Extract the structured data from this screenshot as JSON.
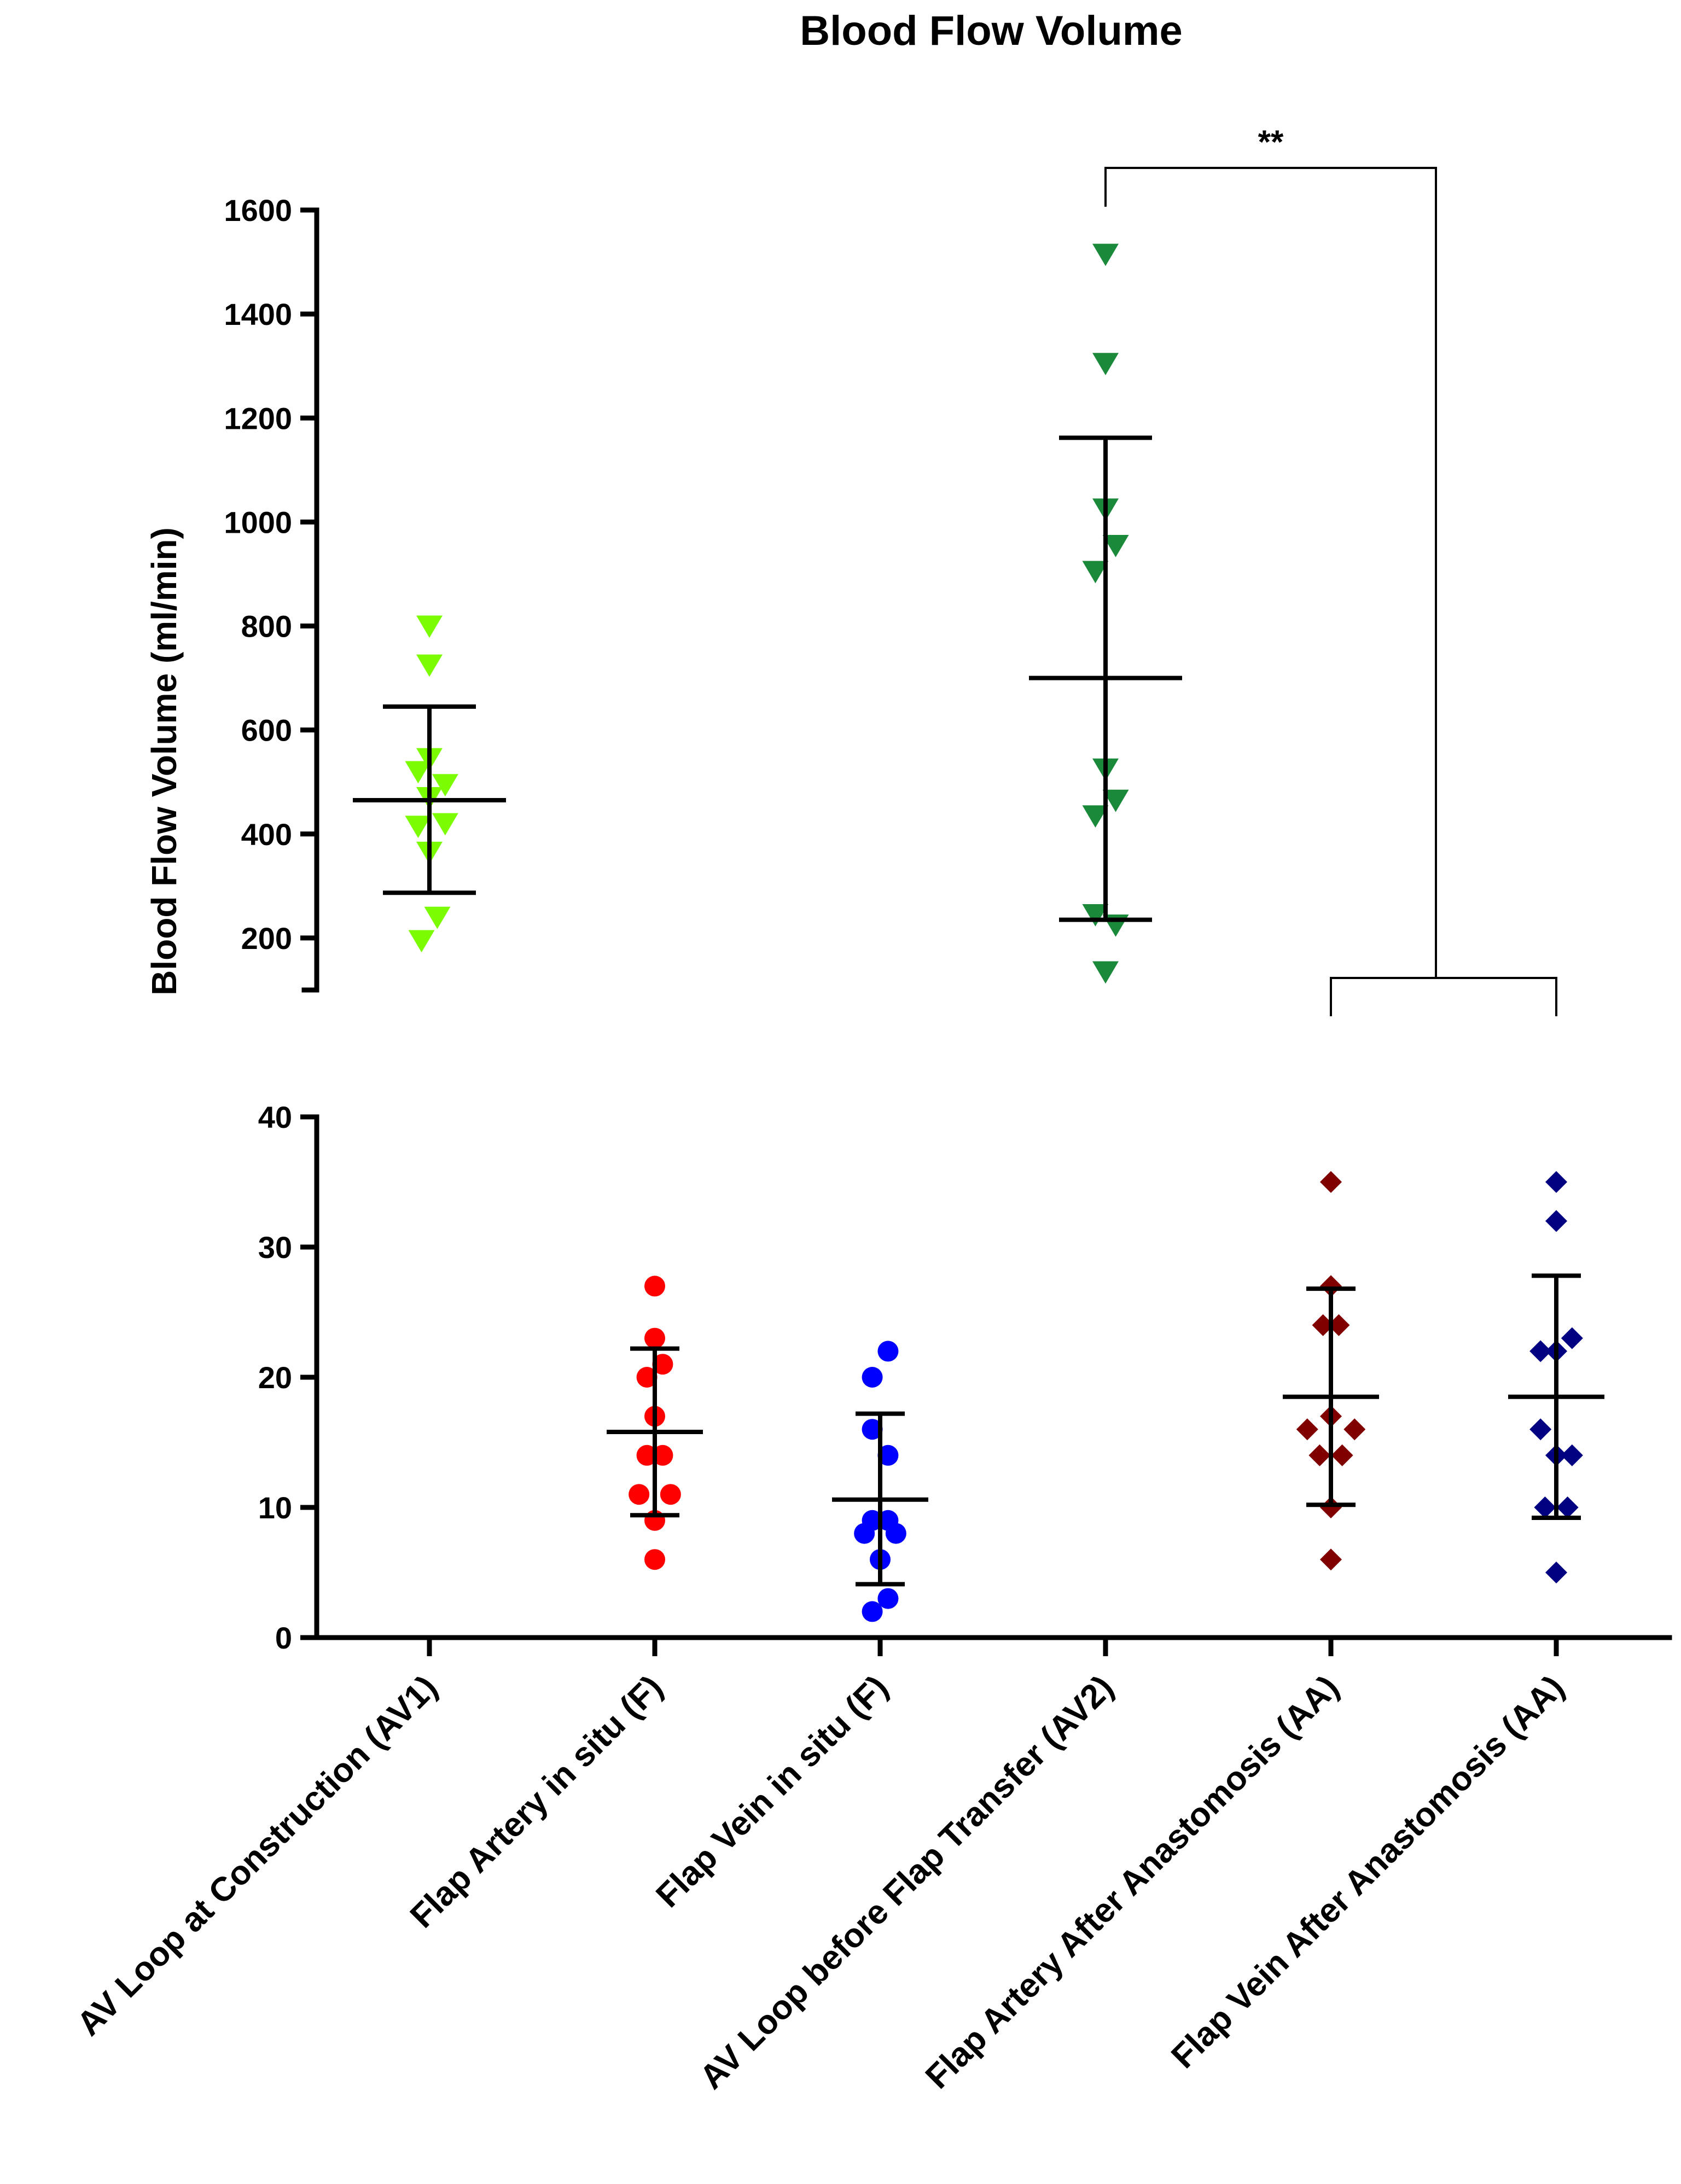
{
  "chart_data": {
    "type": "scatter",
    "title": "Blood Flow Volume",
    "ylabel": "Blood Flow Volume (ml/min)",
    "xlabel": "",
    "axis_break": true,
    "upper_segment": {
      "ylim": [
        100,
        1600
      ],
      "ticks": [
        200,
        400,
        600,
        800,
        1000,
        1200,
        1400,
        1600
      ]
    },
    "lower_segment": {
      "ylim": [
        0,
        40
      ],
      "ticks": [
        0,
        10,
        20,
        30,
        40
      ]
    },
    "categories": [
      "AV Loop at Construction (AV1)",
      "Flap Artery in situ (F)",
      "Flap Vein in situ (F)",
      "AV Loop before Flap Transfer (AV2)",
      "Flap Artery After Anastomosis (AA)",
      "Flap Vein After Anastomosis (AA)"
    ],
    "series": [
      {
        "category": "AV Loop at Construction (AV1)",
        "marker": "triangle-down",
        "color": "#7cfc00",
        "segment": "upper",
        "points": [
          {
            "dx": 0,
            "y": 800
          },
          {
            "dx": 0,
            "y": 725
          },
          {
            "dx": -0.1,
            "y": 520
          },
          {
            "dx": 0,
            "y": 545
          },
          {
            "dx": 0.14,
            "y": 495
          },
          {
            "dx": 0,
            "y": 470
          },
          {
            "dx": -0.1,
            "y": 415
          },
          {
            "dx": 0.14,
            "y": 420
          },
          {
            "dx": 0,
            "y": 365
          },
          {
            "dx": 0.07,
            "y": 240
          },
          {
            "dx": -0.07,
            "y": 195
          }
        ],
        "mean": 465,
        "sd_low": 287,
        "sd_high": 645
      },
      {
        "category": "Flap Artery in situ (F)",
        "marker": "circle",
        "color": "#ff0000",
        "segment": "lower",
        "points": [
          {
            "dx": 0,
            "y": 27
          },
          {
            "dx": 0,
            "y": 23
          },
          {
            "dx": 0.07,
            "y": 21
          },
          {
            "dx": -0.07,
            "y": 20
          },
          {
            "dx": 0,
            "y": 17
          },
          {
            "dx": -0.07,
            "y": 14
          },
          {
            "dx": 0.07,
            "y": 14
          },
          {
            "dx": -0.14,
            "y": 11
          },
          {
            "dx": 0.14,
            "y": 11
          },
          {
            "dx": 0,
            "y": 9
          },
          {
            "dx": 0,
            "y": 6
          }
        ],
        "mean": 15.8,
        "sd_low": 9.4,
        "sd_high": 22.2
      },
      {
        "category": "Flap Vein in situ (F)",
        "marker": "circle",
        "color": "#0000ff",
        "segment": "lower",
        "points": [
          {
            "dx": 0.07,
            "y": 22
          },
          {
            "dx": -0.07,
            "y": 20
          },
          {
            "dx": -0.07,
            "y": 16
          },
          {
            "dx": 0.07,
            "y": 14
          },
          {
            "dx": -0.14,
            "y": 8
          },
          {
            "dx": -0.07,
            "y": 9
          },
          {
            "dx": 0.07,
            "y": 9
          },
          {
            "dx": 0.14,
            "y": 8
          },
          {
            "dx": 0,
            "y": 6
          },
          {
            "dx": 0.07,
            "y": 3
          },
          {
            "dx": -0.07,
            "y": 2
          }
        ],
        "mean": 10.6,
        "sd_low": 4.1,
        "sd_high": 17.2
      },
      {
        "category": "AV Loop before Flap Transfer (AV2)",
        "marker": "triangle-down",
        "color": "#1a8a3a",
        "segment": "upper",
        "points": [
          {
            "dx": 0,
            "y": 1515
          },
          {
            "dx": 0,
            "y": 1305
          },
          {
            "dx": 0,
            "y": 1025
          },
          {
            "dx": 0.09,
            "y": 955
          },
          {
            "dx": -0.09,
            "y": 905
          },
          {
            "dx": 0,
            "y": 525
          },
          {
            "dx": 0.09,
            "y": 465
          },
          {
            "dx": -0.09,
            "y": 435
          },
          {
            "dx": -0.09,
            "y": 245
          },
          {
            "dx": 0.09,
            "y": 225
          },
          {
            "dx": 0,
            "y": 135
          }
        ],
        "mean": 700,
        "sd_low": 235,
        "sd_high": 1162
      },
      {
        "category": "Flap Artery After Anastomosis (AA)",
        "marker": "diamond",
        "color": "#800000",
        "segment": "lower",
        "points": [
          {
            "dx": 0,
            "y": 35
          },
          {
            "dx": 0,
            "y": 27
          },
          {
            "dx": -0.07,
            "y": 24
          },
          {
            "dx": 0.07,
            "y": 24
          },
          {
            "dx": 0,
            "y": 17
          },
          {
            "dx": -0.21,
            "y": 16
          },
          {
            "dx": 0.21,
            "y": 16
          },
          {
            "dx": -0.1,
            "y": 14
          },
          {
            "dx": 0.1,
            "y": 14
          },
          {
            "dx": 0,
            "y": 10
          },
          {
            "dx": 0,
            "y": 6
          }
        ],
        "mean": 18.5,
        "sd_low": 10.2,
        "sd_high": 26.8
      },
      {
        "category": "Flap Vein After Anastomosis (AA)",
        "marker": "diamond",
        "color": "#000080",
        "segment": "lower",
        "points": [
          {
            "dx": 0,
            "y": 35
          },
          {
            "dx": 0,
            "y": 32
          },
          {
            "dx": 0.14,
            "y": 23
          },
          {
            "dx": -0.14,
            "y": 22
          },
          {
            "dx": 0,
            "y": 22
          },
          {
            "dx": -0.14,
            "y": 16
          },
          {
            "dx": 0.14,
            "y": 14
          },
          {
            "dx": 0,
            "y": 14
          },
          {
            "dx": -0.1,
            "y": 10
          },
          {
            "dx": 0.1,
            "y": 10
          },
          {
            "dx": 0,
            "y": 5
          }
        ],
        "mean": 18.5,
        "sd_low": 9.2,
        "sd_high": 27.8
      }
    ],
    "significance": {
      "label": "**",
      "from_category": "AV Loop before Flap Transfer (AV2)",
      "to_categories": [
        "Flap Artery After Anastomosis (AA)",
        "Flap Vein After Anastomosis (AA)"
      ]
    }
  }
}
